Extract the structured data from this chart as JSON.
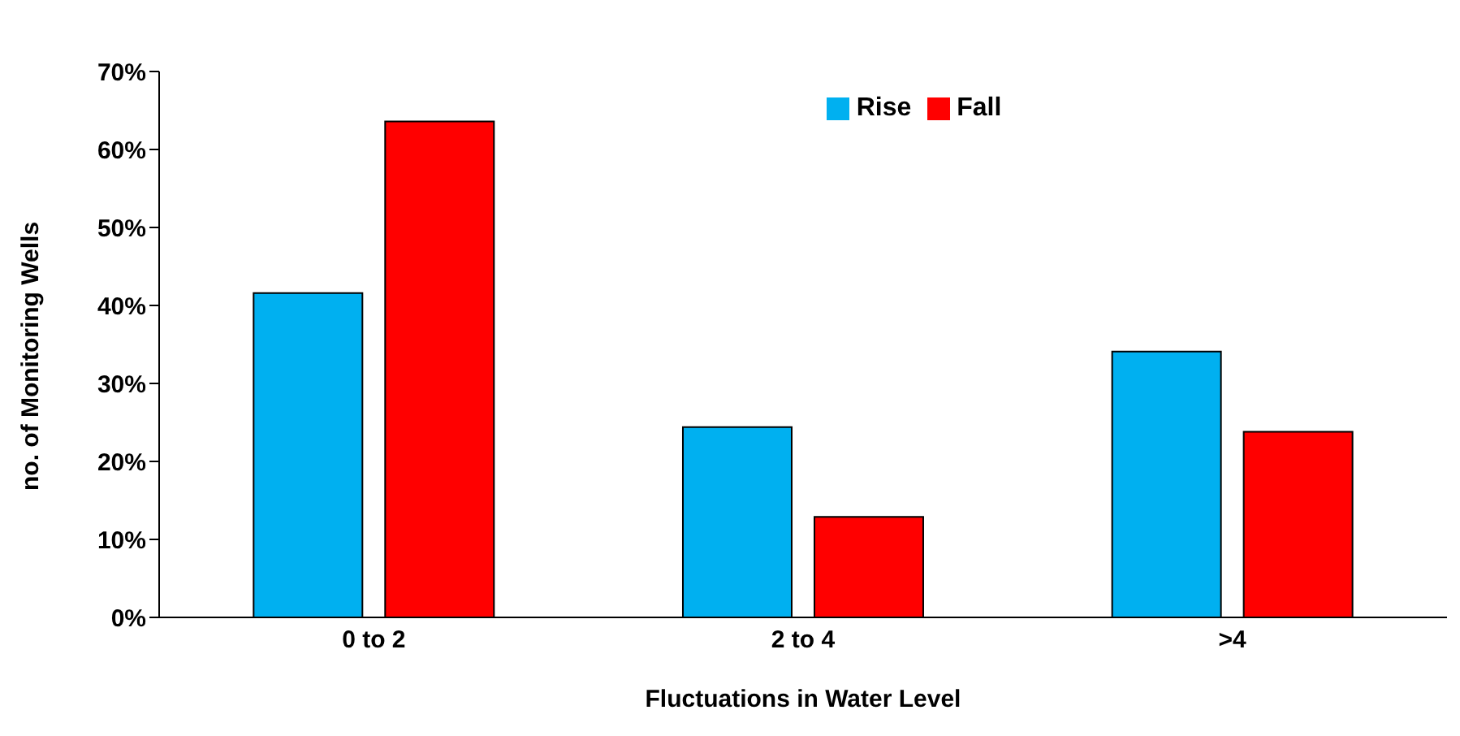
{
  "chart_data": {
    "type": "bar",
    "xlabel": "Fluctuations in Water Level",
    "ylabel": "no. of Monitoring Wells",
    "categories": [
      "0 to 2",
      "2 to 4",
      ">4"
    ],
    "series": [
      {
        "name": "Rise",
        "color": "#00b0f0",
        "values": [
          41.6,
          24.4,
          34.1
        ]
      },
      {
        "name": "Fall",
        "color": "#ff0000",
        "values": [
          63.6,
          12.9,
          23.8
        ]
      }
    ],
    "ylim": [
      0,
      70
    ],
    "yticks": [
      {
        "value": 0,
        "label": "0%"
      },
      {
        "value": 10,
        "label": "10%"
      },
      {
        "value": 20,
        "label": "20%"
      },
      {
        "value": 30,
        "label": "30%"
      },
      {
        "value": 40,
        "label": "40%"
      },
      {
        "value": 50,
        "label": "50%"
      },
      {
        "value": 60,
        "label": "60%"
      },
      {
        "value": 70,
        "label": "70%"
      }
    ],
    "grid": false,
    "legend": "top"
  }
}
